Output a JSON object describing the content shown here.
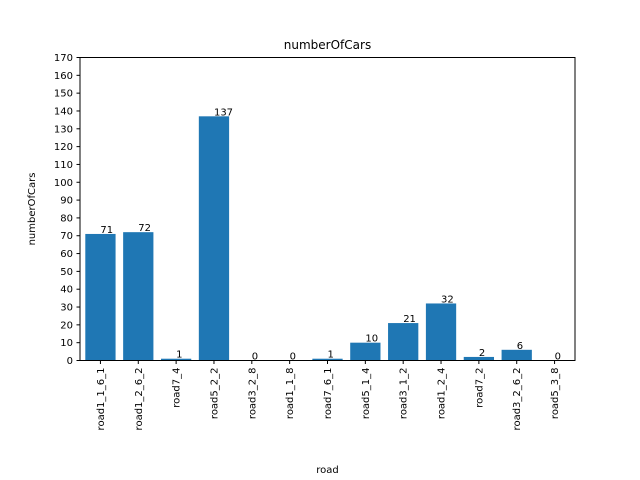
{
  "chart_data": {
    "type": "bar",
    "title": "numberOfCars",
    "xlabel": "road",
    "ylabel": "numberOfCars",
    "categories": [
      "road1_1_6_1",
      "road1_2_6_2",
      "road7_4",
      "road5_2_2",
      "road3_2_8",
      "road1_1_8",
      "road7_6_1",
      "road5_1_4",
      "road3_1_2",
      "road1_2_4",
      "road7_2",
      "road3_2_6_2",
      "road5_3_8"
    ],
    "values": [
      71,
      72,
      1,
      137,
      0,
      0,
      1,
      10,
      21,
      32,
      2,
      6,
      0
    ],
    "ylim": [
      0,
      170
    ],
    "yticks": [
      0,
      10,
      20,
      30,
      40,
      50,
      60,
      70,
      80,
      90,
      100,
      110,
      120,
      130,
      140,
      150,
      160,
      170
    ],
    "grid": false,
    "bar_color": "#1f77b4"
  }
}
